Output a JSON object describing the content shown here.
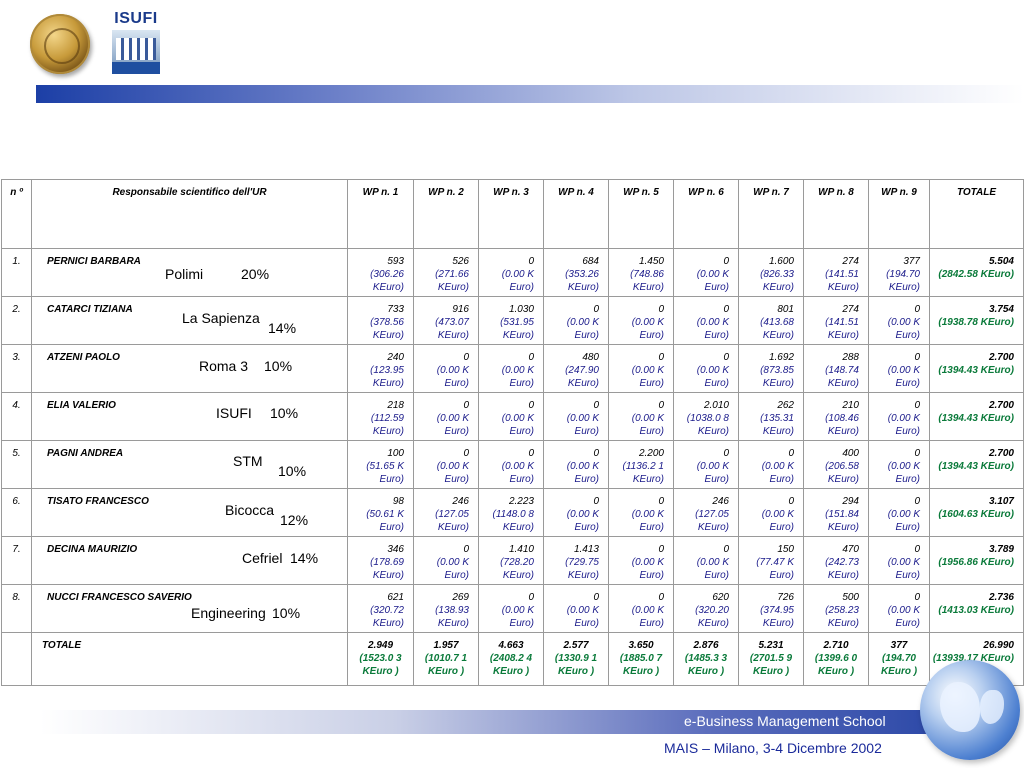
{
  "branding": {
    "isufi_label": "ISUFI",
    "school": "e-Business Management School",
    "footer": "MAIS – Milano, 3-4 Dicembre 2002"
  },
  "table": {
    "header": {
      "n": "n º",
      "responsabile": "Responsabile scientifico dell'UR",
      "wp": [
        "WP n. 1",
        "WP n. 2",
        "WP n. 3",
        "WP n. 4",
        "WP n. 5",
        "WP n. 6",
        "WP n. 7",
        "WP n. 8",
        "WP n. 9"
      ],
      "totale": "TOTALE"
    },
    "rows": [
      {
        "n": "1.",
        "name": "PERNICI BARBARA",
        "institution": "Polimi",
        "share": "20%",
        "cells": [
          [
            "593",
            "(306.26 KEuro)"
          ],
          [
            "526",
            "(271.66 KEuro)"
          ],
          [
            "0",
            "(0.00 K Euro)"
          ],
          [
            "684",
            "(353.26 KEuro)"
          ],
          [
            "1.450",
            "(748.86 KEuro)"
          ],
          [
            "0",
            "(0.00 K Euro)"
          ],
          [
            "1.600",
            "(826.33 KEuro)"
          ],
          [
            "274",
            "(141.51 KEuro)"
          ],
          [
            "377",
            "(194.70 KEuro)"
          ]
        ],
        "total": [
          "5.504",
          "(2842.58 KEuro)"
        ]
      },
      {
        "n": "2.",
        "name": "CATARCI TIZIANA",
        "institution": "La Sapienza",
        "share": "14%",
        "cells": [
          [
            "733",
            "(378.56 KEuro)"
          ],
          [
            "916",
            "(473.07 KEuro)"
          ],
          [
            "1.030",
            "(531.95 KEuro)"
          ],
          [
            "0",
            "(0.00 K Euro)"
          ],
          [
            "0",
            "(0.00 K Euro)"
          ],
          [
            "0",
            "(0.00 K Euro)"
          ],
          [
            "801",
            "(413.68 KEuro)"
          ],
          [
            "274",
            "(141.51 KEuro)"
          ],
          [
            "0",
            "(0.00 K Euro)"
          ]
        ],
        "total": [
          "3.754",
          "(1938.78 KEuro)"
        ]
      },
      {
        "n": "3.",
        "name": "ATZENI PAOLO",
        "institution": "Roma 3",
        "share": "10%",
        "cells": [
          [
            "240",
            "(123.95 KEuro)"
          ],
          [
            "0",
            "(0.00 K Euro)"
          ],
          [
            "0",
            "(0.00 K Euro)"
          ],
          [
            "480",
            "(247.90 KEuro)"
          ],
          [
            "0",
            "(0.00 K Euro)"
          ],
          [
            "0",
            "(0.00 K Euro)"
          ],
          [
            "1.692",
            "(873.85 KEuro)"
          ],
          [
            "288",
            "(148.74 KEuro)"
          ],
          [
            "0",
            "(0.00 K Euro)"
          ]
        ],
        "total": [
          "2.700",
          "(1394.43 KEuro)"
        ]
      },
      {
        "n": "4.",
        "name": "ELIA VALERIO",
        "institution": "ISUFI",
        "share": "10%",
        "cells": [
          [
            "218",
            "(112.59 KEuro)"
          ],
          [
            "0",
            "(0.00 K Euro)"
          ],
          [
            "0",
            "(0.00 K Euro)"
          ],
          [
            "0",
            "(0.00 K Euro)"
          ],
          [
            "0",
            "(0.00 K Euro)"
          ],
          [
            "2.010",
            "(1038.0 8 KEuro)"
          ],
          [
            "262",
            "(135.31 KEuro)"
          ],
          [
            "210",
            "(108.46 KEuro)"
          ],
          [
            "0",
            "(0.00 K Euro)"
          ]
        ],
        "total": [
          "2.700",
          "(1394.43 KEuro)"
        ]
      },
      {
        "n": "5.",
        "name": "PAGNI ANDREA",
        "institution": "STM",
        "share": "10%",
        "cells": [
          [
            "100",
            "(51.65 K Euro)"
          ],
          [
            "0",
            "(0.00 K Euro)"
          ],
          [
            "0",
            "(0.00 K Euro)"
          ],
          [
            "0",
            "(0.00 K Euro)"
          ],
          [
            "2.200",
            "(1136.2 1 KEuro)"
          ],
          [
            "0",
            "(0.00 K Euro)"
          ],
          [
            "0",
            "(0.00 K Euro)"
          ],
          [
            "400",
            "(206.58 KEuro)"
          ],
          [
            "0",
            "(0.00 K Euro)"
          ]
        ],
        "total": [
          "2.700",
          "(1394.43 KEuro)"
        ]
      },
      {
        "n": "6.",
        "name": "TISATO FRANCESCO",
        "institution": "Bicocca",
        "share": "12%",
        "cells": [
          [
            "98",
            "(50.61 K Euro)"
          ],
          [
            "246",
            "(127.05 KEuro)"
          ],
          [
            "2.223",
            "(1148.0 8 KEuro)"
          ],
          [
            "0",
            "(0.00 K Euro)"
          ],
          [
            "0",
            "(0.00 K Euro)"
          ],
          [
            "246",
            "(127.05 KEuro)"
          ],
          [
            "0",
            "(0.00 K Euro)"
          ],
          [
            "294",
            "(151.84 KEuro)"
          ],
          [
            "0",
            "(0.00 K Euro)"
          ]
        ],
        "total": [
          "3.107",
          "(1604.63 KEuro)"
        ]
      },
      {
        "n": "7.",
        "name": "DECINA MAURIZIO",
        "institution": "Cefriel",
        "share": "14%",
        "cells": [
          [
            "346",
            "(178.69 KEuro)"
          ],
          [
            "0",
            "(0.00 K Euro)"
          ],
          [
            "1.410",
            "(728.20 KEuro)"
          ],
          [
            "1.413",
            "(729.75 KEuro)"
          ],
          [
            "0",
            "(0.00 K Euro)"
          ],
          [
            "0",
            "(0.00 K Euro)"
          ],
          [
            "150",
            "(77.47 K Euro)"
          ],
          [
            "470",
            "(242.73 KEuro)"
          ],
          [
            "0",
            "(0.00 K Euro)"
          ]
        ],
        "total": [
          "3.789",
          "(1956.86 KEuro)"
        ]
      },
      {
        "n": "8.",
        "name": "NUCCI FRANCESCO SAVERIO",
        "institution": "Engineering",
        "share": "10%",
        "cells": [
          [
            "621",
            "(320.72 KEuro)"
          ],
          [
            "269",
            "(138.93 KEuro)"
          ],
          [
            "0",
            "(0.00 K Euro)"
          ],
          [
            "0",
            "(0.00 K Euro)"
          ],
          [
            "0",
            "(0.00 K Euro)"
          ],
          [
            "620",
            "(320.20 KEuro)"
          ],
          [
            "726",
            "(374.95 KEuro)"
          ],
          [
            "500",
            "(258.23 KEuro)"
          ],
          [
            "0",
            "(0.00 K Euro)"
          ]
        ],
        "total": [
          "2.736",
          "(1413.03 KEuro)"
        ]
      }
    ],
    "totals": {
      "label": "TOTALE",
      "cells": [
        [
          "2.949",
          "(1523.0 3 KEuro )"
        ],
        [
          "1.957",
          "(1010.7 1 KEuro )"
        ],
        [
          "4.663",
          "(2408.2 4 KEuro )"
        ],
        [
          "2.577",
          "(1330.9 1 KEuro )"
        ],
        [
          "3.650",
          "(1885.0 7 KEuro )"
        ],
        [
          "2.876",
          "(1485.3 3 KEuro )"
        ],
        [
          "5.231",
          "(2701.5 9 KEuro )"
        ],
        [
          "2.710",
          "(1399.6 0 KEuro )"
        ],
        [
          "377",
          "(194.70 KEuro )"
        ]
      ],
      "total": [
        "26.990",
        "(13939.17 KEuro)"
      ]
    }
  }
}
